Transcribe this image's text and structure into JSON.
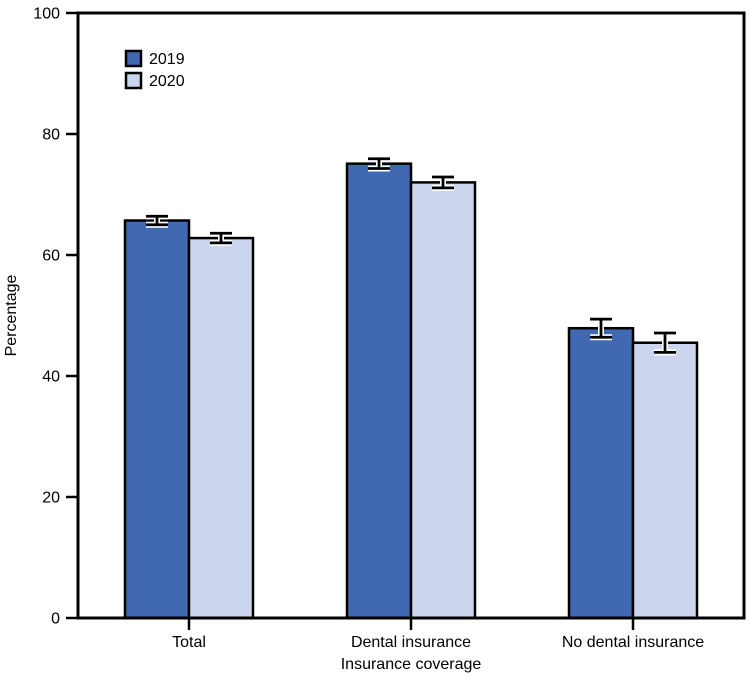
{
  "chart_data": {
    "type": "bar",
    "title": "",
    "xlabel": "Insurance coverage",
    "ylabel": "Percentage",
    "ylim": [
      0,
      100
    ],
    "yticks": [
      0,
      20,
      40,
      60,
      80,
      100
    ],
    "categories": [
      "Total",
      "Dental insurance",
      "No dental insurance"
    ],
    "series": [
      {
        "name": "2019",
        "color": "#4169B2",
        "values": [
          65.7,
          75.1,
          47.9
        ],
        "errors": [
          0.7,
          0.8,
          1.5
        ]
      },
      {
        "name": "2020",
        "color": "#CBD5ED",
        "values": [
          62.8,
          72.0,
          45.5
        ],
        "errors": [
          0.8,
          0.9,
          1.6
        ]
      }
    ],
    "legend_position": "top-left",
    "grid": false,
    "error_bars": true
  },
  "styles": {
    "frame_color": "#000000",
    "bar_border_color": "#000000",
    "error_bar_color": "#000000",
    "error_bar_halo_color": "#ffffff",
    "text_color": "#000000",
    "background": "#ffffff"
  }
}
